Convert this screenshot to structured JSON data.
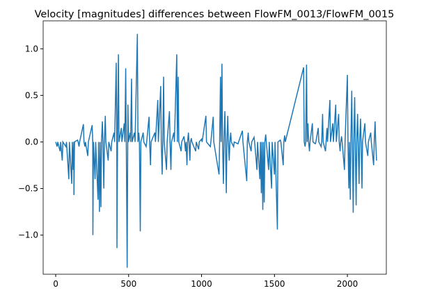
{
  "chart_data": {
    "type": "line",
    "title": "Velocity [magnitudes] differences between FlowFM_0013/FlowFM_0015",
    "x": [
      0,
      10,
      14,
      30,
      34,
      45,
      49,
      70,
      74,
      90,
      94,
      110,
      114,
      120,
      124,
      125,
      129,
      150,
      154,
      160,
      164,
      190,
      194,
      200,
      204,
      220,
      224,
      250,
      254,
      255,
      259,
      270,
      274,
      290,
      294,
      300,
      304,
      310,
      314,
      320,
      324,
      330,
      334,
      340,
      344,
      360,
      364,
      380,
      384,
      400,
      404,
      415,
      419,
      420,
      424,
      430,
      434,
      450,
      454,
      470,
      474,
      480,
      484,
      490,
      494,
      495,
      499,
      510,
      514,
      520,
      524,
      540,
      544,
      560,
      564,
      570,
      574,
      580,
      584,
      600,
      604,
      620,
      624,
      640,
      644,
      650,
      654,
      680,
      684,
      700,
      704,
      720,
      724,
      730,
      734,
      740,
      744,
      760,
      764,
      780,
      784,
      790,
      794,
      810,
      814,
      830,
      834,
      840,
      844,
      860,
      864,
      880,
      884,
      890,
      894,
      900,
      904,
      910,
      914,
      920,
      924,
      930,
      934,
      960,
      964,
      980,
      984,
      1000,
      1004,
      1030,
      1034,
      1060,
      1064,
      1080,
      1084,
      1120,
      1124,
      1130,
      1134,
      1140,
      1144,
      1150,
      1154,
      1160,
      1164,
      1170,
      1174,
      1180,
      1184,
      1190,
      1194,
      1200,
      1204,
      1220,
      1224,
      1250,
      1254,
      1280,
      1284,
      1310,
      1314,
      1320,
      1324,
      1340,
      1344,
      1360,
      1364,
      1380,
      1384,
      1400,
      1404,
      1410,
      1414,
      1420,
      1424,
      1430,
      1434,
      1440,
      1444,
      1460,
      1464,
      1480,
      1484,
      1500,
      1504,
      1520,
      1524,
      1540,
      1544,
      1560,
      1564,
      1570,
      1574,
      1700,
      1704,
      1710,
      1714,
      1720,
      1724,
      1730,
      1734,
      1740,
      1744,
      1760,
      1764,
      1780,
      1784,
      1800,
      1804,
      1820,
      1824,
      1830,
      1834,
      1850,
      1854,
      1860,
      1864,
      1880,
      1884,
      1900,
      1904,
      1920,
      1924,
      1940,
      1944,
      1950,
      1954,
      1960,
      1964,
      1980,
      1984,
      2000,
      2004,
      2010,
      2014,
      2020,
      2024,
      2030,
      2034,
      2040,
      2044,
      2050,
      2054,
      2060,
      2064,
      2070,
      2074,
      2080,
      2084,
      2090,
      2094,
      2100,
      2104,
      2120,
      2124,
      2140,
      2144,
      2160,
      2164,
      2180,
      2184,
      2190,
      2194,
      2200
    ],
    "values": [
      0,
      -0.05,
      0,
      -0.1,
      0,
      -0.2,
      0,
      -0.05,
      0,
      -0.4,
      0,
      -0.45,
      0,
      -0.3,
      0,
      -0.57,
      0,
      0.02,
      0,
      -0.05,
      0,
      0.19,
      0,
      -0.05,
      0,
      -0.15,
      0,
      0.18,
      0,
      -1.0,
      0,
      -0.4,
      0,
      -0.62,
      0,
      -0.75,
      0,
      -0.7,
      0,
      0.22,
      0,
      -0.5,
      0,
      0.28,
      0,
      -0.2,
      0,
      -0.1,
      0,
      0.1,
      0,
      0.85,
      0,
      -1.14,
      0,
      0.94,
      0,
      0.15,
      0,
      0.2,
      0,
      0.79,
      0,
      -1.35,
      0,
      0.4,
      0,
      0.1,
      0,
      0.68,
      0,
      0.1,
      0,
      1.16,
      0,
      0.1,
      0,
      -0.96,
      0,
      0.1,
      0,
      -0.05,
      0,
      0.27,
      0,
      -0.25,
      0,
      0.1,
      0,
      0.45,
      0,
      0.6,
      0,
      -0.35,
      0,
      0.7,
      0,
      -0.3,
      0,
      0.33,
      0,
      -0.3,
      0,
      0.1,
      0,
      0.94,
      0,
      0.7,
      0,
      -0.1,
      0,
      0.06,
      0,
      -0.1,
      0,
      -0.25,
      0,
      0.1,
      0,
      -0.2,
      0,
      0.04,
      0,
      -0.1,
      0,
      -0.08,
      0,
      0.03,
      0,
      0.28,
      0,
      -0.05,
      0,
      0.27,
      0,
      -0.35,
      0,
      0.7,
      0,
      0.84,
      0,
      -0.45,
      0,
      0.33,
      0,
      -0.55,
      0,
      0.28,
      0,
      -0.2,
      0,
      0.1,
      0,
      -0.05,
      0,
      -0.02,
      0,
      0.12,
      0,
      -0.42,
      0,
      0.1,
      0,
      -0.1,
      0,
      0.05,
      0,
      -0.3,
      0,
      -0.4,
      0,
      -0.55,
      0,
      -0.73,
      0,
      -0.65,
      0,
      0.08,
      0,
      -0.3,
      0,
      -0.5,
      0,
      -0.35,
      0,
      -0.94,
      0,
      0.02,
      0,
      -0.25,
      0,
      0.07,
      0,
      0.8,
      0,
      -0.05,
      0,
      0.83,
      0,
      0.2,
      0,
      -0.1,
      0,
      0.2,
      0,
      -0.02,
      0,
      0.15,
      0,
      -0.05,
      0,
      0.3,
      0,
      -0.1,
      0,
      0.15,
      0,
      0.45,
      0,
      0.2,
      0,
      0.4,
      0,
      0.3,
      0,
      -0.1,
      0,
      0.06,
      0,
      -0.3,
      0,
      0.72,
      0,
      -0.5,
      0,
      -0.62,
      0,
      0.55,
      0,
      -0.76,
      0,
      0.48,
      0,
      -0.68,
      0,
      0.3,
      0,
      -0.45,
      0,
      0.25,
      0,
      -0.5,
      0,
      0.2,
      0,
      -0.15,
      0,
      0.1,
      0,
      -0.25,
      0,
      0.22,
      0,
      -0.2
    ],
    "color": "#1f77b4",
    "xlim": [
      -86,
      2267
    ],
    "ylim": [
      -1.42,
      1.3
    ],
    "xticks": [
      0,
      500,
      1000,
      1500,
      2000
    ],
    "yticks": [
      {
        "value": -1.0,
        "label": "−1.0"
      },
      {
        "value": -0.5,
        "label": "−0.5"
      },
      {
        "value": 0.0,
        "label": "0.0"
      },
      {
        "value": 0.5,
        "label": "0.5"
      },
      {
        "value": 1.0,
        "label": "1.0"
      }
    ]
  }
}
